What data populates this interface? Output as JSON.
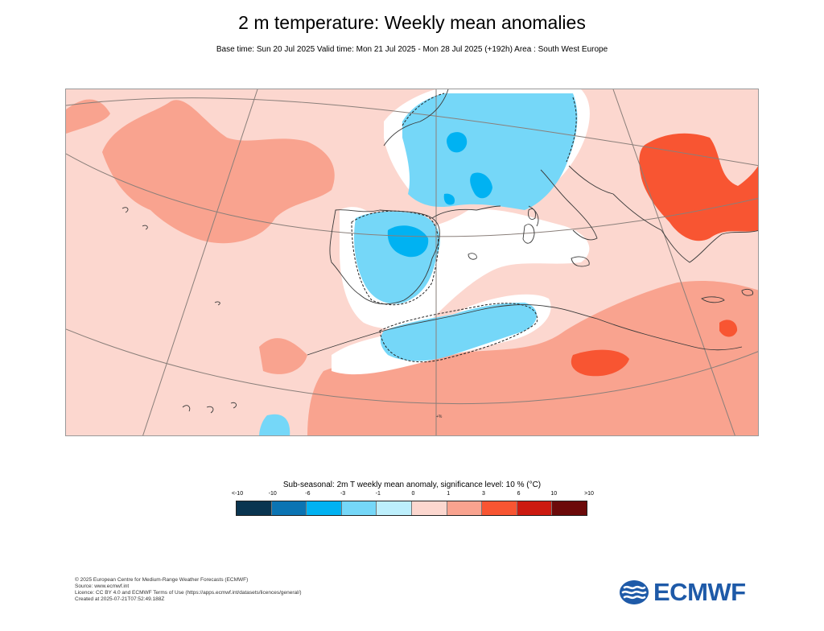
{
  "title": "2 m temperature: Weekly mean anomalies",
  "subtitle": "Base time: Sun 20 Jul 2025 Valid time: Mon 21 Jul 2025 - Mon 28 Jul 2025 (+192h) Area : South West Europe",
  "map": {
    "area": "South West Europe",
    "background_color": "#fcd7cf",
    "land_outline_color": "#3a3a3a",
    "graticule_color": "#8a7f7a",
    "significance_contour_style": "dashed",
    "tiny_label": "+%"
  },
  "legend": {
    "title": "Sub-seasonal: 2m T weekly mean anomaly, significance level: 10 % (°C)",
    "ticks": [
      "<-10",
      "-10",
      "-6",
      "-3",
      "-1",
      "0",
      "1",
      "3",
      "6",
      "10",
      ">10"
    ],
    "colors": [
      "#0a3550",
      "#0b74b3",
      "#00b2f2",
      "#75d7f8",
      "#bdeffc",
      "#fcd7cf",
      "#f9a38f",
      "#f85532",
      "#cc1a10",
      "#6c0a0a"
    ]
  },
  "footer": {
    "copyright": "© 2025 European Centre for Medium-Range Weather Forecasts (ECMWF)",
    "source": "Source: www.ecmwf.int",
    "licence": "Licence: CC BY 4.0 and ECMWF Terms of Use (https://apps.ecmwf.int/datasets/licences/general/)",
    "created": "Created at 2025-07-21T07:52:49.188Z"
  },
  "logo": {
    "text": "ECMWF",
    "icon": "ecmwf-logo-icon",
    "color": "#1e5aa8"
  }
}
